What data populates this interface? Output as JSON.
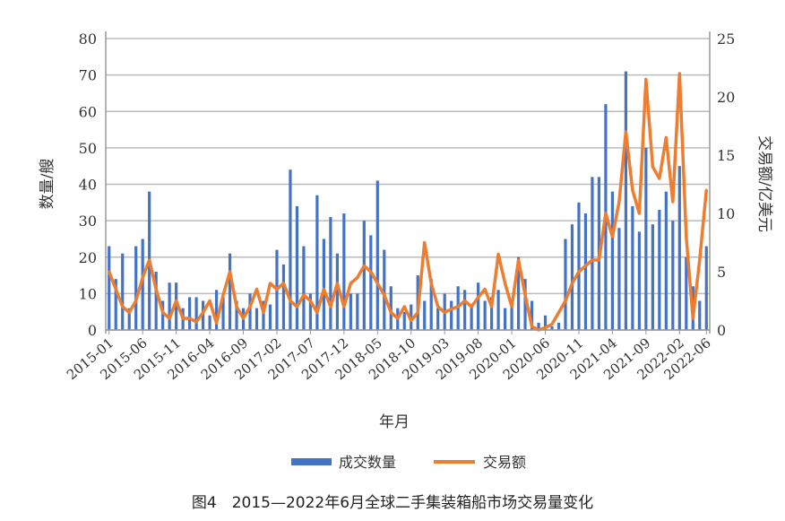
{
  "chart_data": {
    "type": "bar+line",
    "caption": "图4　2015—2022年6月全球二手集装箱船市场交易量变化",
    "xlabel": "年月",
    "ylabel_left": "数量/艘",
    "ylabel_right": "交易额/亿美元",
    "ylim_left": [
      0,
      80
    ],
    "ylim_right": [
      0,
      25
    ],
    "yticks_left": [
      0,
      10,
      20,
      30,
      40,
      50,
      60,
      70,
      80
    ],
    "yticks_right": [
      0,
      5,
      10,
      15,
      20,
      25
    ],
    "xtick_labels": [
      "2015-01",
      "2015-06",
      "2015-11",
      "2016-04",
      "2016-09",
      "2017-02",
      "2017-07",
      "2017-12",
      "2018-05",
      "2018-10",
      "2019-03",
      "2019-08",
      "2020-01",
      "2020-06",
      "2020-11",
      "2021-04",
      "2021-09",
      "2022-02",
      "2022-06"
    ],
    "grid": true,
    "legend_position": "bottom",
    "colors": {
      "bars": "#4472c4",
      "line": "#ed7d31"
    },
    "series": [
      {
        "name": "成交数量",
        "axis": "left",
        "kind": "bar",
        "values": [
          23,
          14,
          21,
          6,
          23,
          25,
          38,
          16,
          8,
          13,
          13,
          6,
          9,
          9,
          8,
          4,
          11,
          9,
          21,
          8,
          6,
          10,
          6,
          8,
          7,
          22,
          18,
          44,
          34,
          23,
          10,
          37,
          25,
          31,
          21,
          32,
          10,
          10,
          30,
          26,
          41,
          22,
          12,
          6,
          5,
          7,
          15,
          8,
          14,
          6,
          10,
          8,
          12,
          11,
          7,
          13,
          8,
          9,
          11,
          6,
          8,
          20,
          14,
          8,
          2,
          4,
          1,
          2,
          25,
          29,
          35,
          32,
          42,
          42,
          62,
          38,
          28,
          71,
          34,
          27,
          50,
          29,
          33,
          38,
          30,
          45,
          20,
          12,
          8,
          23
        ]
      },
      {
        "name": "交易额",
        "axis": "right",
        "kind": "line",
        "values": [
          5,
          3.5,
          2,
          1.5,
          2.5,
          4.5,
          6,
          3.5,
          1.5,
          1,
          2.5,
          1,
          1,
          0.7,
          1.5,
          2.5,
          0.6,
          3,
          5,
          2,
          1,
          2,
          3.5,
          1.5,
          4,
          3.5,
          4,
          2.5,
          2,
          3,
          2.5,
          1.5,
          3.5,
          2,
          4,
          2,
          4,
          4.5,
          5.5,
          5,
          4,
          3,
          1.5,
          1,
          2,
          0.8,
          1.5,
          7.5,
          4,
          2,
          1.5,
          1.8,
          2,
          2.5,
          2,
          2.8,
          3.5,
          2,
          6.5,
          4,
          2,
          6,
          3,
          0.3,
          0,
          0.2,
          0.5,
          1.5,
          2.5,
          4,
          5,
          5.5,
          6,
          6,
          10,
          8,
          11,
          17,
          12,
          10,
          21.5,
          14,
          13,
          16.5,
          11,
          22,
          8,
          1,
          6,
          12
        ]
      }
    ]
  }
}
